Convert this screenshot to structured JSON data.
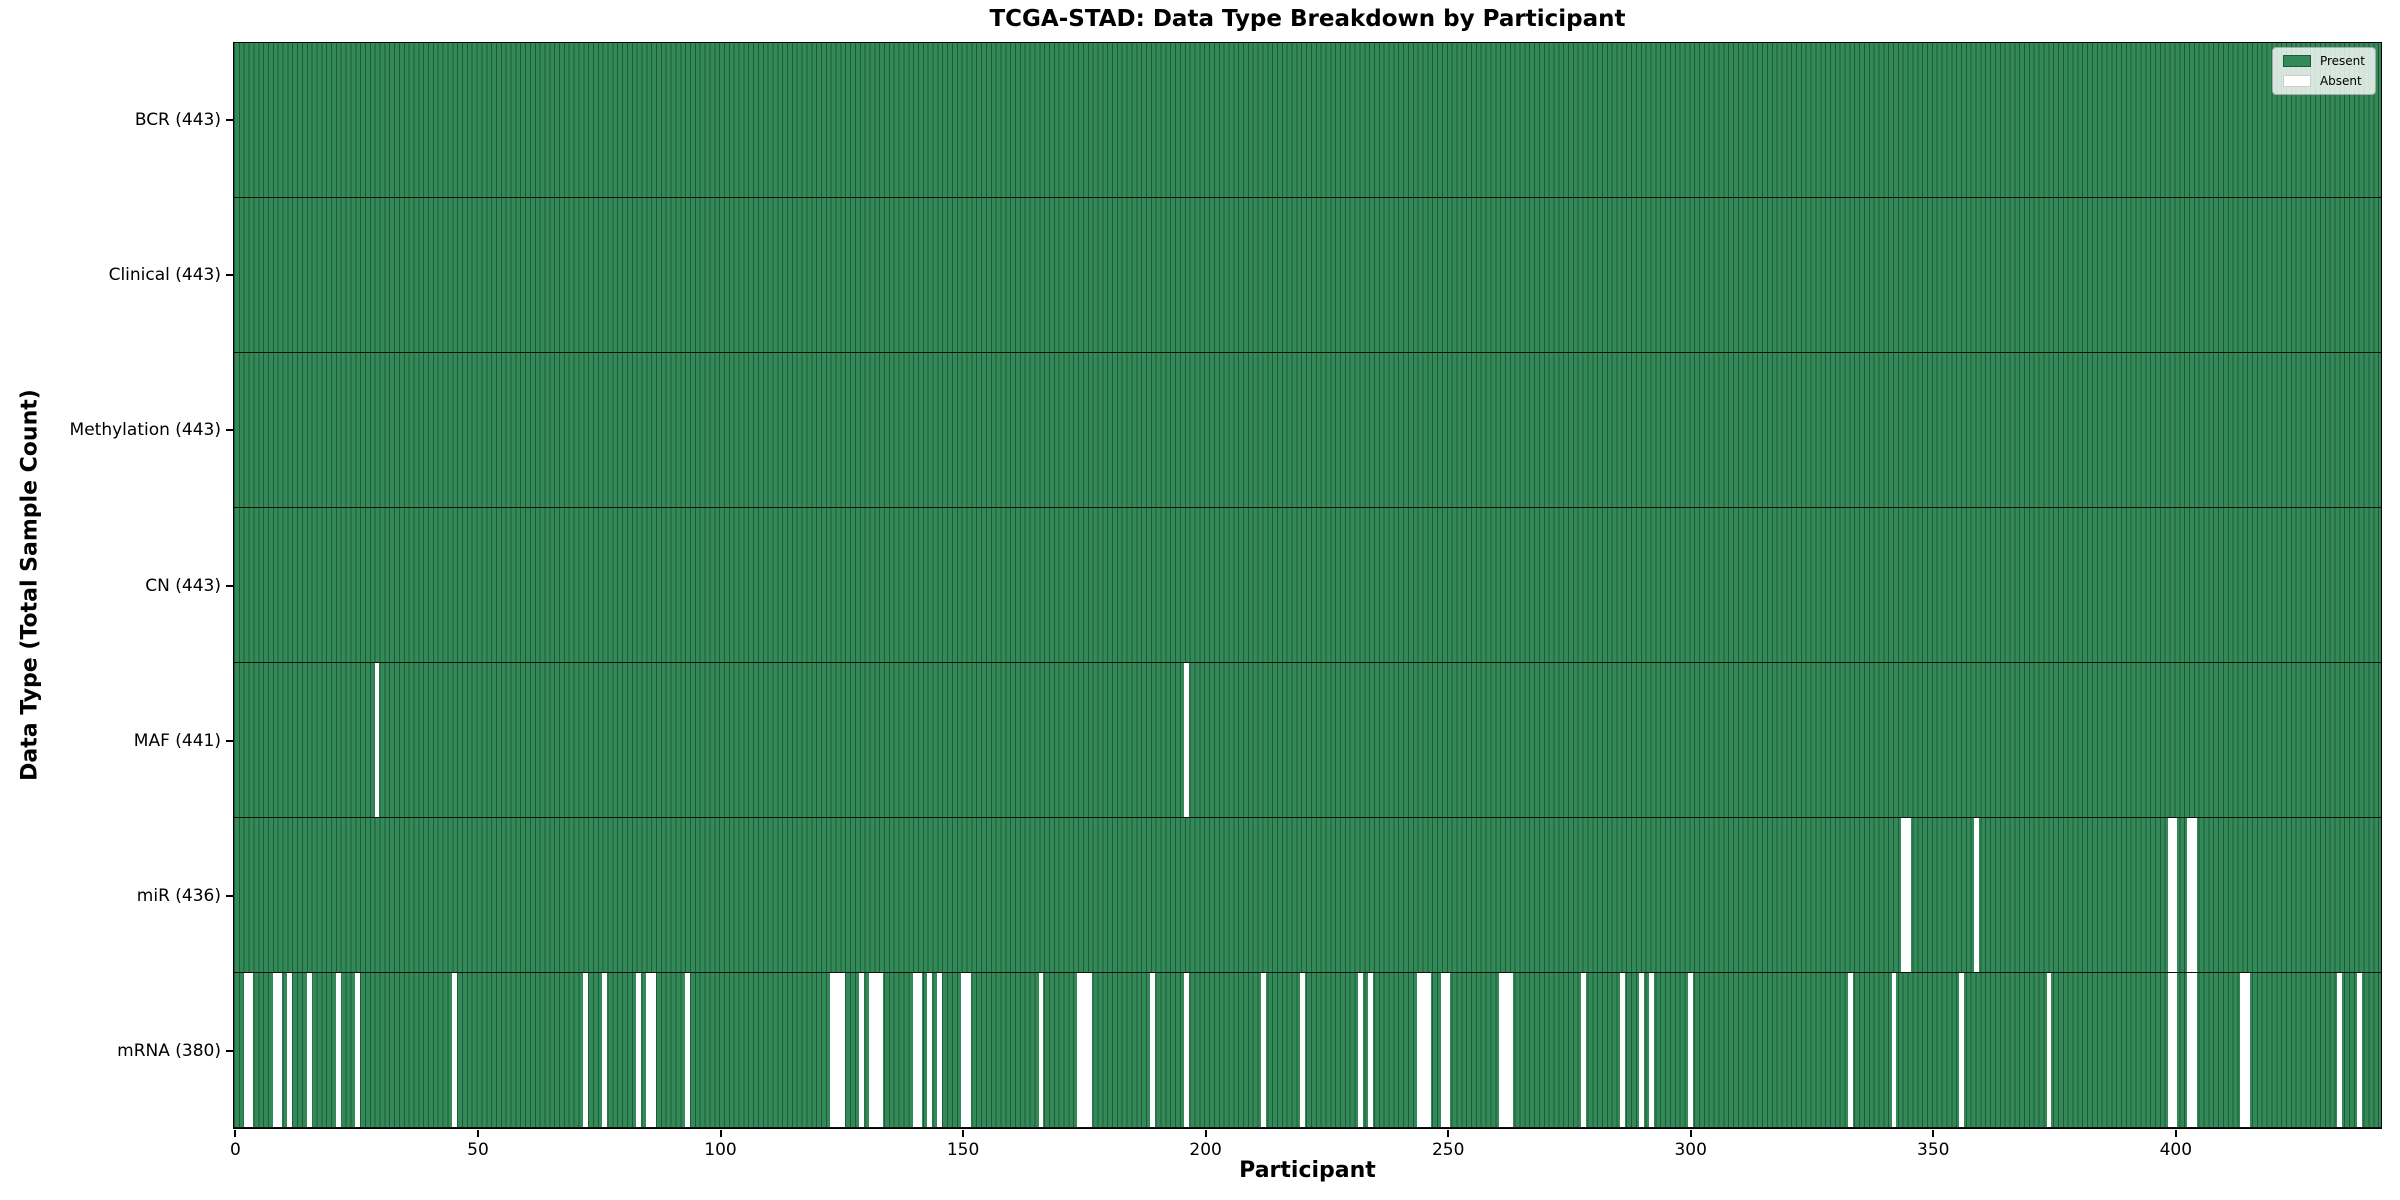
{
  "title": "TCGA-STAD: Data Type Breakdown by Participant",
  "legend": {
    "labels": [
      "Present",
      "Absent"
    ]
  },
  "colors": {
    "present": "#338a58",
    "cell_edge": "#1d5c39",
    "absent": "#ffffff",
    "row_divider": "#101010",
    "spine": "#000000"
  },
  "chart_data": {
    "type": "heatmap",
    "title": "TCGA-STAD: Data Type Breakdown by Participant",
    "xlabel": "Participant",
    "ylabel": "Data Type (Total Sample Count)",
    "n_participants": 443,
    "xlim": [
      -0.5,
      442.5
    ],
    "x_ticks": [
      0,
      50,
      100,
      150,
      200,
      250,
      300,
      350,
      400
    ],
    "grid": false,
    "legend_position": "upper right",
    "legend": [
      "Present",
      "Absent"
    ],
    "rows": [
      {
        "data_type": "BCR",
        "label": "BCR (443)",
        "present_count": 443,
        "absent_participants": []
      },
      {
        "data_type": "Clinical",
        "label": "Clinical (443)",
        "present_count": 443,
        "absent_participants": []
      },
      {
        "data_type": "Methylation",
        "label": "Methylation (443)",
        "present_count": 443,
        "absent_participants": []
      },
      {
        "data_type": "CN",
        "label": "CN (443)",
        "present_count": 443,
        "absent_participants": []
      },
      {
        "data_type": "MAF",
        "label": "MAF (441)",
        "present_count": 441,
        "absent_participants": [
          29,
          196
        ]
      },
      {
        "data_type": "miR",
        "label": "miR (436)",
        "present_count": 436,
        "absent_participants": [
          344,
          345,
          359,
          399,
          400,
          403,
          404
        ]
      },
      {
        "data_type": "mRNA",
        "label": "mRNA (380)",
        "present_count": 380,
        "absent_participants": [
          2,
          3,
          8,
          9,
          11,
          15,
          21,
          25,
          45,
          72,
          76,
          83,
          85,
          86,
          93,
          123,
          124,
          125,
          129,
          131,
          132,
          133,
          140,
          141,
          143,
          145,
          150,
          151,
          166,
          174,
          175,
          176,
          189,
          196,
          212,
          220,
          232,
          234,
          244,
          245,
          246,
          249,
          250,
          261,
          262,
          263,
          278,
          286,
          290,
          292,
          300,
          333,
          342,
          356,
          374,
          399,
          400,
          403,
          404,
          414,
          415,
          434,
          438
        ]
      }
    ]
  }
}
